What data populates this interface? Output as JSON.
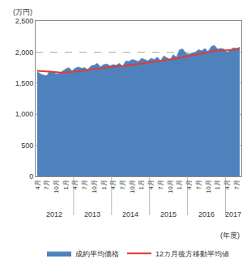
{
  "chart_data": {
    "type": "area",
    "ylabel": "(万円)",
    "xlabel": "(年度)",
    "categories": [
      "4月",
      null,
      null,
      "7月",
      null,
      null,
      "10月",
      null,
      null,
      "1月",
      null,
      null,
      "4月",
      null,
      null,
      "7月",
      null,
      null,
      "10月",
      null,
      null,
      "1月",
      null,
      null,
      "4月",
      null,
      null,
      "7月",
      null,
      null,
      "10月",
      null,
      null,
      "1月",
      null,
      null,
      "4月",
      null,
      null,
      "7月",
      null,
      null,
      "10月",
      null,
      null,
      "1月",
      null,
      null,
      "4月",
      null,
      null,
      "7月",
      null,
      null,
      "10月",
      null,
      null,
      "1月",
      null,
      null,
      "4月",
      null,
      null,
      "7月",
      null
    ],
    "year_groups": [
      {
        "label": "2012",
        "count": 12
      },
      {
        "label": "2013",
        "count": 12
      },
      {
        "label": "2014",
        "count": 12
      },
      {
        "label": "2015",
        "count": 12
      },
      {
        "label": "2016",
        "count": 12
      },
      {
        "label": "2017",
        "count": 5
      }
    ],
    "series": [
      {
        "name": "成約平均価格",
        "type": "area",
        "color": "#4f81bd",
        "values": [
          1690,
          1650,
          1630,
          1620,
          1700,
          1680,
          1650,
          1660,
          1700,
          1730,
          1750,
          1700,
          1740,
          1760,
          1740,
          1750,
          1720,
          1780,
          1790,
          1820,
          1760,
          1800,
          1810,
          1780,
          1800,
          1790,
          1820,
          1770,
          1860,
          1850,
          1880,
          1870,
          1850,
          1900,
          1880,
          1860,
          1900,
          1880,
          1920,
          1860,
          1940,
          1910,
          1880,
          1960,
          1920,
          2040,
          2050,
          1980,
          1970,
          1990,
          2000,
          2040,
          2020,
          2060,
          2010,
          2090,
          2110,
          2050,
          2060,
          2050,
          2000,
          2030,
          2070,
          2060,
          2080
        ]
      },
      {
        "name": "12カ月後方移動平均値",
        "type": "line",
        "color": "#e03c31",
        "values": [
          1700,
          1695,
          1690,
          1685,
          1680,
          1678,
          1675,
          1672,
          1670,
          1672,
          1675,
          1680,
          1685,
          1692,
          1700,
          1708,
          1713,
          1720,
          1728,
          1735,
          1740,
          1745,
          1752,
          1758,
          1763,
          1767,
          1773,
          1775,
          1785,
          1790,
          1797,
          1800,
          1807,
          1815,
          1820,
          1827,
          1835,
          1842,
          1850,
          1857,
          1863,
          1870,
          1875,
          1883,
          1890,
          1903,
          1917,
          1927,
          1933,
          1943,
          1950,
          1965,
          1972,
          1985,
          1995,
          2005,
          2020,
          2020,
          2022,
          2028,
          2030,
          2035,
          2040,
          2045,
          2060
        ]
      }
    ],
    "ylim": [
      0,
      2500
    ],
    "yticks": [
      0,
      500,
      {
        "value": 1000,
        "label": "1,000"
      },
      {
        "value": 1500,
        "label": "1,500"
      },
      {
        "value": 2000,
        "label": "2,000"
      },
      {
        "value": 2500,
        "label": "2,500"
      }
    ],
    "grid": true,
    "legend": "bottom"
  }
}
